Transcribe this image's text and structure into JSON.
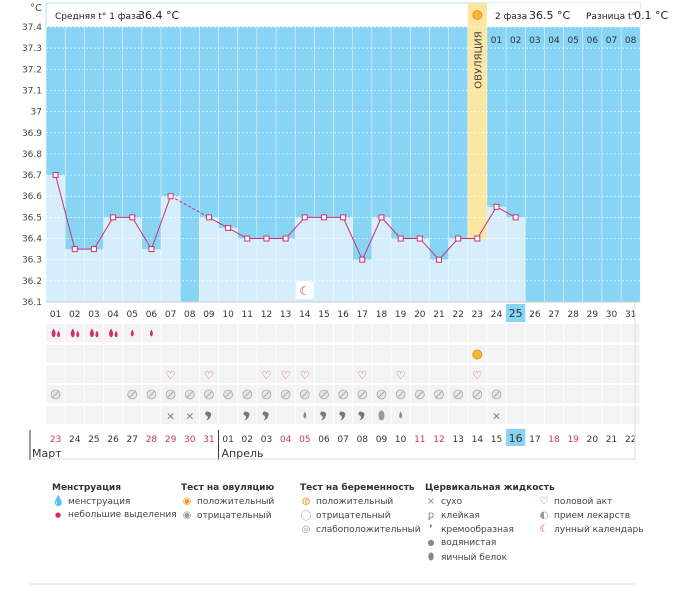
{
  "header": {
    "unit_label": "°C",
    "phase1_label": "Средняя t° 1 фаза",
    "phase1_value": "36.4 °C",
    "phase2_label": "2 фаза",
    "phase2_value": "36.5 °C",
    "diff_label": "Разница t°",
    "diff_value": "0.1 °C",
    "ovulation_label": "ОВУЛЯЦИЯ",
    "cycle_days_after": [
      "01",
      "02",
      "03",
      "04",
      "05",
      "06",
      "07",
      "08"
    ]
  },
  "colors": {
    "sky": "#87d4f5",
    "bar_fill": "#d6eefc",
    "ovulation_band": "#fbe6a2",
    "line": "#d0306f",
    "weekend": "#d0306f"
  },
  "chart_data": {
    "type": "bar",
    "title": "",
    "xlabel": "",
    "ylabel": "°C",
    "ylim": [
      36.1,
      37.4
    ],
    "y_ticks": [
      "36.1",
      "36.2",
      "36.3",
      "36.4",
      "36.5",
      "36.6",
      "36.7",
      "36.8",
      "36.9",
      "37",
      "37.1",
      "37.2",
      "37.3",
      "37.4"
    ],
    "categories": [
      "01",
      "02",
      "03",
      "04",
      "05",
      "06",
      "07",
      "08",
      "09",
      "10",
      "11",
      "12",
      "13",
      "14",
      "15",
      "16",
      "17",
      "18",
      "19",
      "20",
      "21",
      "22",
      "23",
      "24",
      "25",
      "26",
      "27",
      "28",
      "29",
      "30",
      "31"
    ],
    "temperatures": [
      36.7,
      36.35,
      36.35,
      36.5,
      36.5,
      36.35,
      36.6,
      null,
      36.5,
      36.45,
      36.4,
      36.4,
      36.4,
      36.5,
      36.5,
      36.5,
      36.3,
      36.5,
      36.4,
      36.4,
      36.3,
      36.4,
      36.4,
      36.55,
      36.5,
      null,
      null,
      null,
      null,
      null,
      null
    ],
    "dashed_segments": [
      [
        7,
        9
      ]
    ],
    "ovulation_day": "23",
    "current_day": "25",
    "dates": [
      "23",
      "24",
      "25",
      "26",
      "27",
      "28",
      "29",
      "30",
      "31",
      "01",
      "02",
      "03",
      "04",
      "05",
      "06",
      "07",
      "08",
      "09",
      "10",
      "11",
      "12",
      "13",
      "14",
      "15",
      "16",
      "17",
      "18",
      "19",
      "20",
      "21",
      "22"
    ],
    "weekend_dates_idx": [
      0,
      5,
      6,
      7,
      8,
      12,
      13,
      19,
      20,
      26,
      27
    ],
    "months": [
      "Март",
      "Апрель"
    ],
    "markers": {
      "menstruation": [
        2,
        2,
        2,
        2,
        1,
        1,
        0,
        0,
        0,
        0,
        0,
        0,
        0,
        0,
        0,
        0,
        0,
        0,
        0,
        0,
        0,
        0,
        0,
        0,
        0,
        0,
        0,
        0,
        0,
        0,
        0
      ],
      "ovulation_test_positive": [
        "23"
      ],
      "intercourse": [
        "07",
        "09",
        "12",
        "13",
        "14",
        "17",
        "19",
        "23"
      ],
      "medicine": [
        "01",
        "05",
        "06",
        "07",
        "08",
        "09",
        "10",
        "11",
        "12",
        "13",
        "14",
        "15",
        "16",
        "17",
        "18",
        "19",
        "20",
        "21",
        "22",
        "23",
        "24"
      ],
      "cervical_fluid": {
        "08": "dry",
        "09": "creamy",
        "11": "creamy",
        "12": "creamy",
        "14": "watery",
        "15": "creamy",
        "16": "creamy",
        "17": "creamy",
        "18": "egg-white",
        "19": "watery",
        "24": "dry",
        "07": "dry"
      },
      "lunar": [
        "14"
      ]
    }
  },
  "legend": {
    "menstruation": {
      "title": "Менструация",
      "items": [
        "менструация",
        "небольшие выделения"
      ]
    },
    "ovulation_test": {
      "title": "Тест на овуляцию",
      "items": [
        "положительный",
        "отрицательный"
      ]
    },
    "pregnancy_test": {
      "title": "Тест на беременность",
      "items": [
        "положительный",
        "отрицательный",
        "слабоположительный"
      ]
    },
    "cervical": {
      "title": "Цервикальная жидкость",
      "items": [
        "сухо",
        "клейкая",
        "кремообразная",
        "водянистая",
        "яичный белок"
      ]
    },
    "other": {
      "items": [
        "половой акт",
        "прием лекарств",
        "лунный календарь"
      ]
    }
  }
}
